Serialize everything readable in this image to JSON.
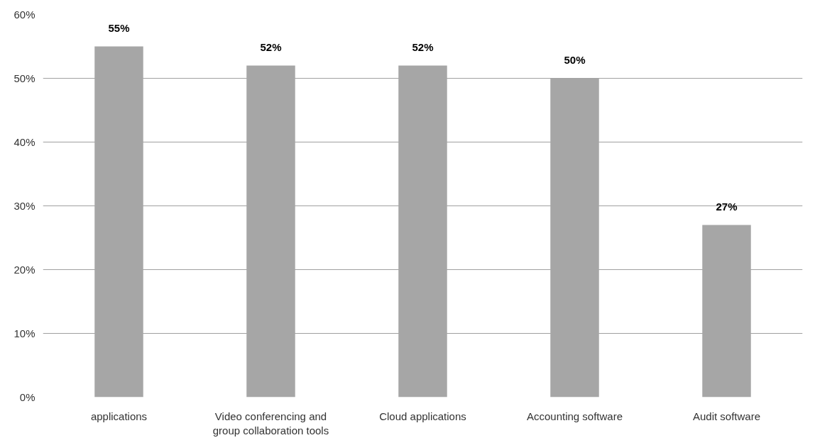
{
  "chart_data": {
    "type": "bar",
    "categories": [
      "applications",
      "Video conferencing and group collaboration tools",
      "Cloud applications",
      "Accounting software",
      "Audit software"
    ],
    "values": [
      55,
      52,
      52,
      50,
      27
    ],
    "value_labels": [
      "55%",
      "52%",
      "52%",
      "50%",
      "27%"
    ],
    "color": "#a6a6a6",
    "ylim": [
      0,
      60
    ],
    "yticks": [
      {
        "value": 0,
        "label": "0%"
      },
      {
        "value": 10,
        "label": "10%"
      },
      {
        "value": 20,
        "label": "20%"
      },
      {
        "value": 30,
        "label": "30%"
      },
      {
        "value": 40,
        "label": "40%"
      },
      {
        "value": 50,
        "label": "50%"
      },
      {
        "value": 60,
        "label": "60%"
      }
    ],
    "grid": "y"
  }
}
